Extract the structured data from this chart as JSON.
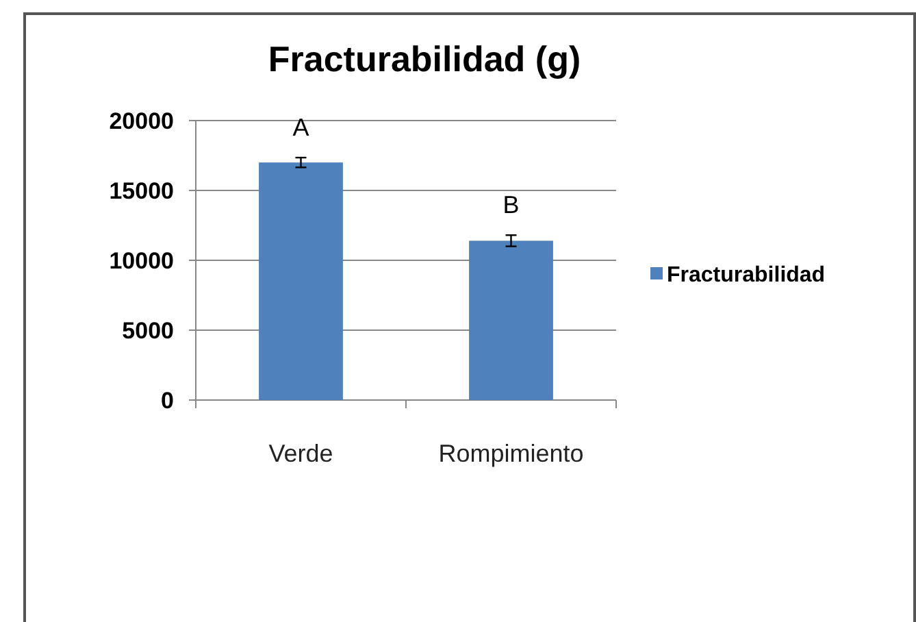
{
  "chart_data": {
    "type": "bar",
    "title": "Fracturabilidad (g)",
    "categories": [
      "Verde",
      "Rompimiento"
    ],
    "series": [
      {
        "name": "Fracturabilidad",
        "color": "#4f81bd",
        "values": [
          17000,
          11400
        ],
        "errors": [
          350,
          400
        ]
      }
    ],
    "ylim": [
      0,
      20000
    ],
    "yticks": [
      0,
      5000,
      10000,
      15000,
      20000
    ],
    "grid": "y",
    "legend": "right",
    "annotations": [
      "A",
      "B"
    ]
  }
}
